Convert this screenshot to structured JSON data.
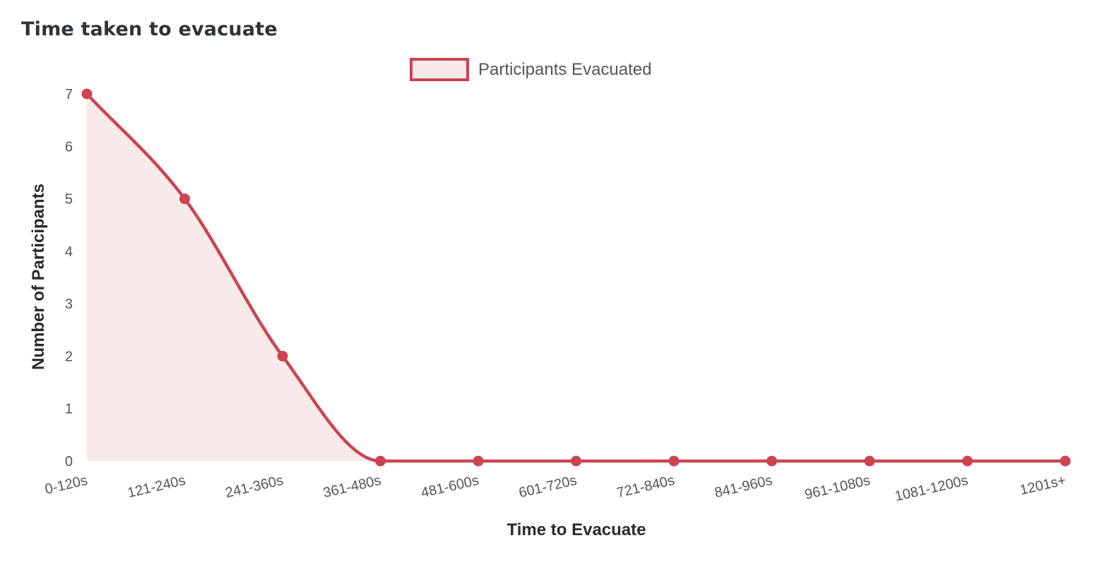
{
  "card": {
    "title": "Time taken to evacuate"
  },
  "colors": {
    "line": "#cc4451",
    "fill": "#f8eaeb",
    "tick": "#555555"
  },
  "chart_data": {
    "type": "area",
    "title": "",
    "xlabel": "Time to Evacuate",
    "ylabel": "Number of Participants",
    "categories": [
      "0-120s",
      "121-240s",
      "241-360s",
      "361-480s",
      "481-600s",
      "601-720s",
      "721-840s",
      "841-960s",
      "961-1080s",
      "1081-1200s",
      "1201s+"
    ],
    "series": [
      {
        "name": "Participants Evacuated",
        "values": [
          7,
          5,
          2,
          0,
          0,
          0,
          0,
          0,
          0,
          0,
          0
        ]
      }
    ],
    "ylim": [
      0,
      7
    ],
    "yticks": [
      "0",
      "1",
      "2",
      "3",
      "4",
      "5",
      "6",
      "7"
    ],
    "grid": false,
    "legend": "top-center",
    "smooth": true
  }
}
